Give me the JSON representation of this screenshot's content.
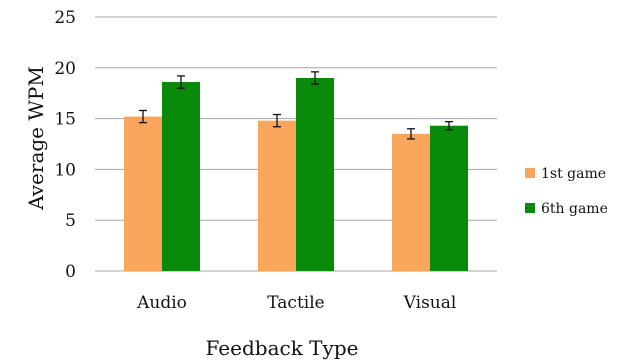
{
  "chart_data": {
    "type": "bar",
    "xlabel": "Feedback Type",
    "ylabel": "Average WPM",
    "ylim": [
      0,
      25
    ],
    "yticks": [
      "0",
      "5",
      "10",
      "15",
      "20",
      "25"
    ],
    "grid": true,
    "legend_position": "right",
    "categories": [
      "Audio",
      "Tactile",
      "Visual"
    ],
    "series": [
      {
        "name": "1st game",
        "color": "#f9a55b",
        "values": [
          15.2,
          14.8,
          13.5
        ],
        "error": [
          0.6,
          0.6,
          0.5
        ]
      },
      {
        "name": "6th game",
        "color": "#0a8a0a",
        "values": [
          18.6,
          19.0,
          14.3
        ],
        "error": [
          0.6,
          0.6,
          0.4
        ]
      }
    ]
  }
}
